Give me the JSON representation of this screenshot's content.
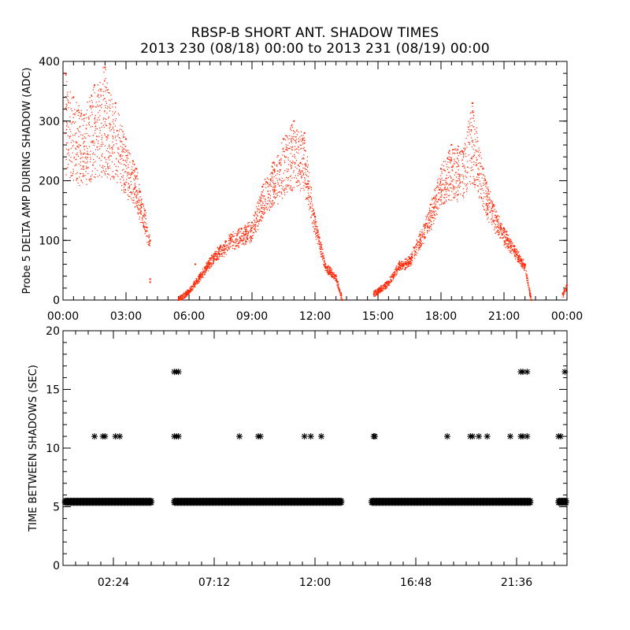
{
  "title_line1": "RBSP-B SHORT ANT. SHADOW TIMES",
  "title_line2": "2013 230 (08/18) 00:00 to 2013 231 (08/19) 00:00",
  "colors": {
    "series_top": "#ff2200",
    "series_bottom": "#000000",
    "axes": "#000000"
  },
  "chart_data": [
    {
      "type": "scatter",
      "ylabel": "Probe 5 DELTA AMP DURING SHADOW (ADC)",
      "x_unit": "hours",
      "xlim": [
        0,
        24
      ],
      "ylim": [
        0,
        400
      ],
      "xticks": [
        0,
        3,
        6,
        9,
        12,
        15,
        18,
        21,
        24
      ],
      "xtick_labels": [
        "00:00",
        "03:00",
        "06:00",
        "09:00",
        "12:00",
        "15:00",
        "18:00",
        "21:00",
        "00:00"
      ],
      "yticks": [
        0,
        100,
        200,
        300,
        400
      ],
      "ytick_labels": [
        "0",
        "100",
        "200",
        "300",
        "400"
      ],
      "series": [
        {
          "color": "#ff2200",
          "x": [
            0.1,
            0.5,
            1.0,
            1.5,
            2.0,
            2.5,
            3.0,
            3.5,
            3.9,
            4.15,
            5.5,
            6.0,
            6.5,
            7.0,
            7.5,
            8.0,
            8.5,
            9.0,
            9.5,
            10.0,
            10.5,
            11.0,
            11.5,
            12.0,
            12.5,
            13.0,
            13.3,
            14.8,
            15.5,
            16.0,
            16.5,
            17.0,
            17.5,
            18.0,
            18.5,
            19.0,
            19.5,
            20.0,
            20.5,
            21.0,
            21.5,
            22.0,
            22.3,
            23.8,
            24.0
          ],
          "y": [
            380,
            340,
            310,
            360,
            390,
            330,
            270,
            220,
            150,
            100,
            0,
            15,
            40,
            70,
            90,
            110,
            120,
            130,
            190,
            230,
            270,
            300,
            280,
            140,
            60,
            40,
            0,
            10,
            30,
            60,
            70,
            110,
            160,
            220,
            260,
            250,
            330,
            220,
            160,
            120,
            90,
            60,
            0,
            10,
            25
          ]
        }
      ]
    },
    {
      "type": "scatter",
      "ylabel": "TIME BETWEEN SHADOWS (SEC)",
      "x_unit": "hours",
      "xlim": [
        0,
        24
      ],
      "ylim": [
        0,
        20
      ],
      "xticks": [
        2.4,
        7.2,
        12.0,
        16.8,
        21.6
      ],
      "xtick_labels": [
        "02:24",
        "07:12",
        "12:00",
        "16:48",
        "21:36"
      ],
      "yticks": [
        0,
        5,
        10,
        15,
        20
      ],
      "ytick_labels": [
        "0",
        "5",
        "10",
        "15",
        "20"
      ],
      "marker": "*",
      "series": [
        {
          "color": "#000000",
          "bands": [
            {
              "y": 5.5,
              "x_ranges": [
                [
                  0.1,
                  4.2
                ],
                [
                  5.3,
                  13.3
                ],
                [
                  14.7,
                  22.3
                ],
                [
                  23.6,
                  24.0
                ]
              ]
            }
          ],
          "x": [
            1.5,
            1.9,
            2.0,
            2.5,
            2.7,
            5.3,
            5.4,
            5.5,
            8.4,
            9.3,
            9.4,
            11.5,
            11.8,
            12.3,
            14.8,
            14.85,
            18.3,
            19.4,
            19.5,
            19.8,
            20.2,
            21.3,
            21.8,
            21.9,
            22.1,
            23.6,
            23.7,
            5.3,
            5.4,
            5.5,
            21.8,
            21.9,
            22.1,
            23.9
          ],
          "y": [
            11,
            11,
            11,
            11,
            11,
            11,
            11,
            11,
            11,
            11,
            11,
            11,
            11,
            11,
            11,
            11,
            11,
            11,
            11,
            11,
            11,
            11,
            11,
            11,
            11,
            11,
            11,
            16.5,
            16.5,
            16.5,
            16.5,
            16.5,
            16.5,
            16.5
          ]
        }
      ]
    }
  ]
}
